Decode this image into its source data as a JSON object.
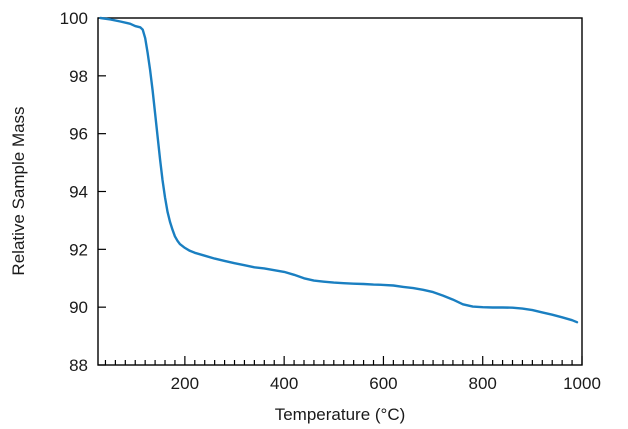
{
  "chart_data": {
    "type": "line",
    "title": "",
    "xlabel": "Temperature (°C)",
    "ylabel": "Relative Sample Mass",
    "xlim": [
      25,
      1000
    ],
    "ylim": [
      88,
      100
    ],
    "x_ticks": [
      200,
      400,
      600,
      800,
      1000
    ],
    "y_ticks": [
      88,
      90,
      92,
      94,
      96,
      98,
      100
    ],
    "x_minor_step": 20,
    "grid": false,
    "legend": "none",
    "series": [
      {
        "color": "#1a7fc1",
        "x": [
          30,
          50,
          70,
          90,
          100,
          110,
          115,
          120,
          125,
          130,
          135,
          140,
          145,
          150,
          155,
          160,
          165,
          170,
          175,
          180,
          185,
          190,
          200,
          210,
          220,
          240,
          260,
          280,
          300,
          320,
          340,
          360,
          380,
          400,
          420,
          440,
          460,
          480,
          500,
          520,
          540,
          560,
          580,
          600,
          620,
          640,
          660,
          680,
          700,
          720,
          740,
          760,
          780,
          800,
          820,
          840,
          860,
          880,
          900,
          920,
          940,
          960,
          980,
          990
        ],
        "y": [
          100.0,
          99.95,
          99.88,
          99.8,
          99.72,
          99.68,
          99.6,
          99.3,
          98.8,
          98.2,
          97.5,
          96.7,
          95.9,
          95.1,
          94.4,
          93.8,
          93.3,
          92.95,
          92.68,
          92.45,
          92.3,
          92.18,
          92.05,
          91.95,
          91.88,
          91.78,
          91.68,
          91.6,
          91.52,
          91.45,
          91.38,
          91.34,
          91.28,
          91.22,
          91.12,
          91.0,
          90.92,
          90.88,
          90.85,
          90.83,
          90.81,
          90.8,
          90.78,
          90.77,
          90.75,
          90.7,
          90.66,
          90.6,
          90.52,
          90.4,
          90.26,
          90.1,
          90.02,
          90.0,
          89.99,
          89.99,
          89.98,
          89.95,
          89.9,
          89.82,
          89.74,
          89.65,
          89.55,
          89.48
        ]
      }
    ]
  }
}
